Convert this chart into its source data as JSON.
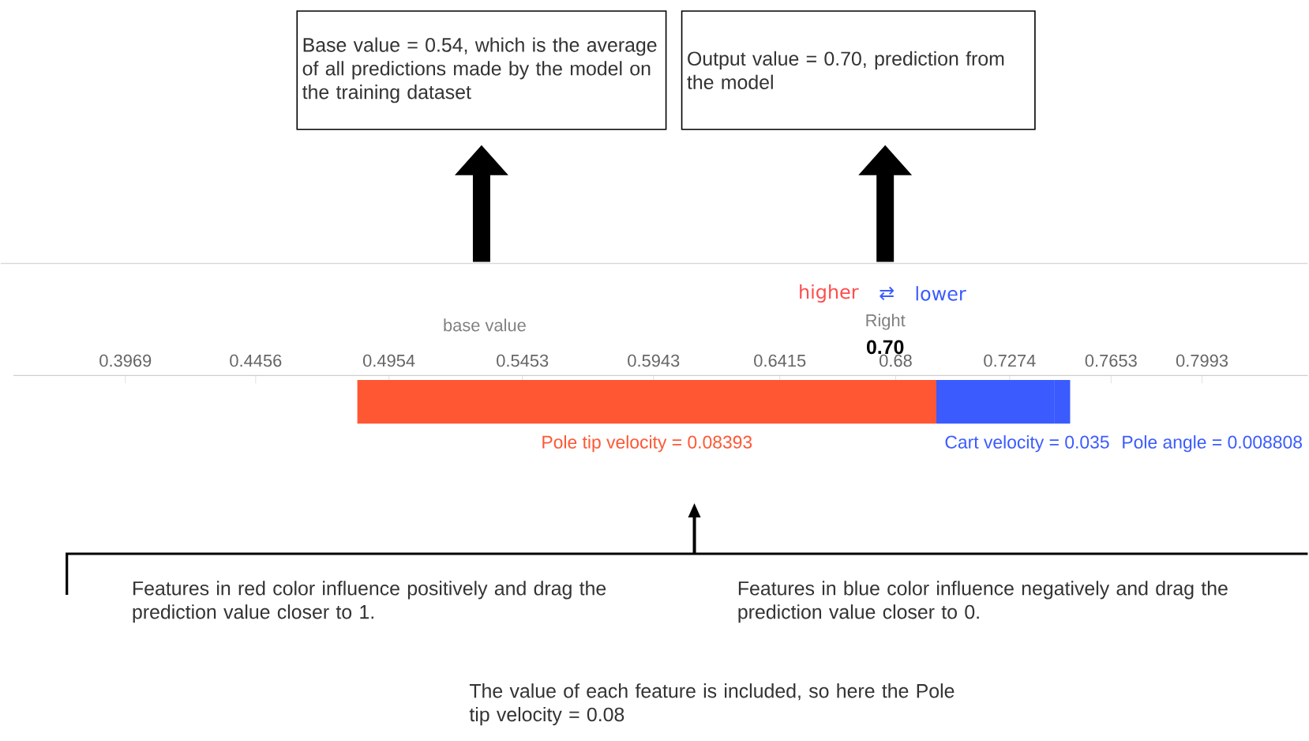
{
  "chart_data": {
    "type": "bar",
    "orientation": "horizontal",
    "categories": [
      null
    ],
    "series": [
      {
        "name": "Pole tip velocity = 0.08393",
        "color": "#ff5733",
        "base": [
          0.4836
        ],
        "values": [
          0.2164
        ]
      },
      {
        "name": "Cart velocity = 0.035",
        "color": "#3b5bff",
        "base": [
          0.744
        ],
        "values": [
          -0.044
        ]
      },
      {
        "name": "Pole angle = 0.008808",
        "color": "#3b5bff",
        "base": [
          0.75
        ],
        "values": [
          -0.006
        ]
      }
    ],
    "xlim": [
      0.355,
      0.8388
    ],
    "xticks": [
      0.3969,
      0.4456,
      0.4954,
      0.5453,
      0.5943,
      0.6415,
      {
        "value": 0.6848,
        "label": "0.68"
      },
      0.7274,
      0.7653,
      0.7993
    ],
    "grid": false,
    "annotations": [
      "Base value = 0.54, which is the average of all predictions made by the model on the training dataset",
      "Output value = 0.70, prediction from the model",
      "higher",
      "⇄",
      "lower",
      "base value",
      "Right",
      "0.70",
      "Features in red color influence positively and drag the prediction value closer to 1.",
      "Features in blue color influence negatively and drag the prediction value closer to 0.",
      "The value of each feature is included, so here the Pole tip velocity = 0.08"
    ]
  }
}
